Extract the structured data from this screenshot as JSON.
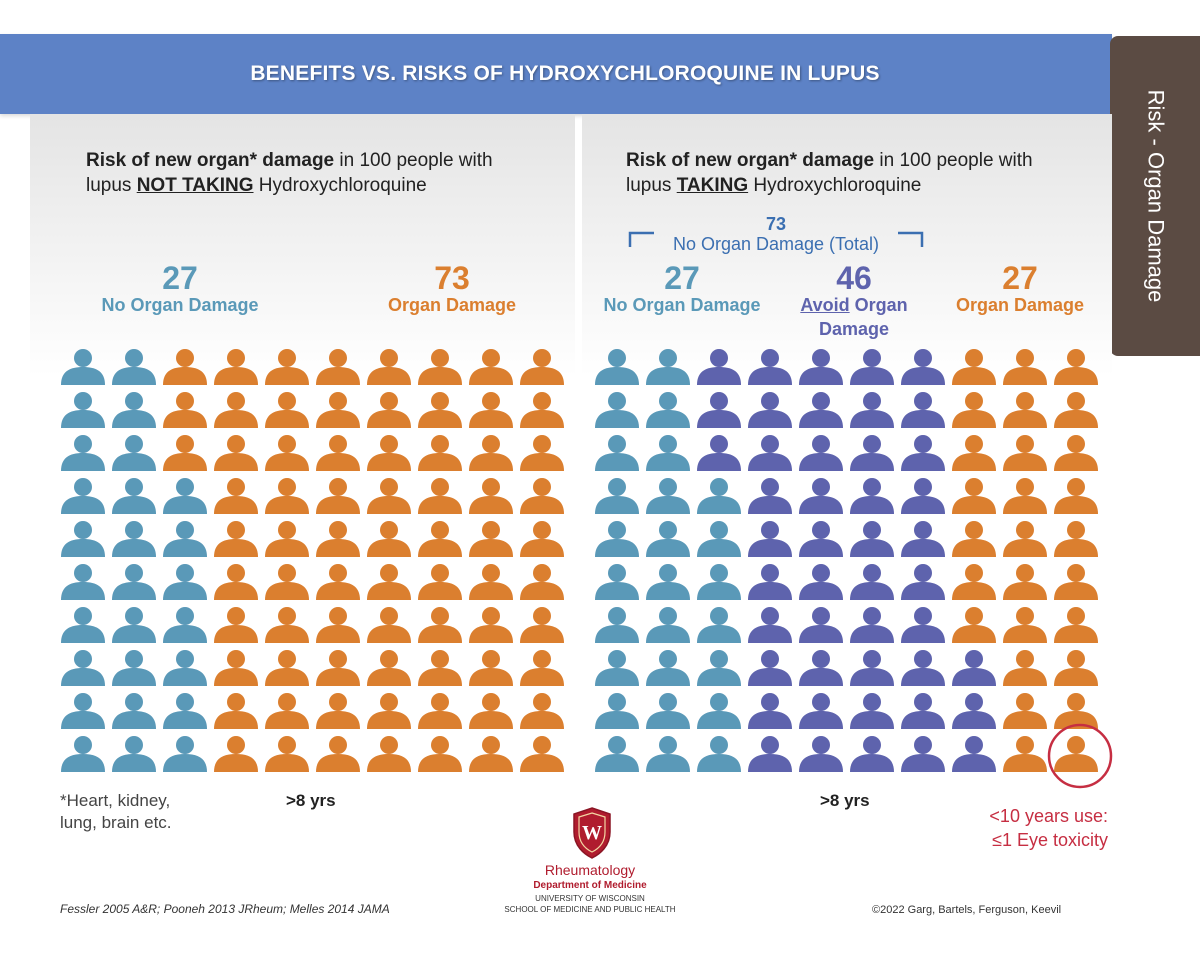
{
  "title": "BENEFITS VS. RISKS OF HYDROXYCHLOROQUINE IN LUPUS",
  "side_tab": "Risk - Organ Damage",
  "left_panel": {
    "heading_bold1": "Risk of new organ* damage",
    "heading_text1": " in 100 people with",
    "heading_text2": "lupus ",
    "heading_bold2": "NOT TAKING",
    "heading_text3": " Hydroxychloroquine",
    "groups": [
      {
        "number": "27",
        "label": "No Organ Damage"
      },
      {
        "number": "73",
        "label": "Organ Damage"
      }
    ],
    "footnote_line1": "*Heart, kidney,",
    "footnote_line2": "lung, brain etc.",
    "duration": ">8 yrs"
  },
  "right_panel": {
    "heading_bold1": "Risk of new organ* damage",
    "heading_text1": " in 100 people with",
    "heading_text2": "lupus ",
    "heading_bold2": "TAKING",
    "heading_text3": " Hydroxychloroquine",
    "total_number": "73",
    "total_label": "No Organ Damage (Total)",
    "groups": [
      {
        "number": "27",
        "label": "No Organ Damage"
      },
      {
        "number": "46",
        "label_underlined": "Avoid",
        "label_rest": " Organ",
        "label_line2": "Damage"
      },
      {
        "number": "27",
        "label": "Organ Damage"
      }
    ],
    "duration": ">8 yrs",
    "eye_note_line1": "<10 years use:",
    "eye_note_line2": "≤1 Eye toxicity"
  },
  "logo": {
    "line1": "Rheumatology",
    "line2": "Department of Medicine",
    "line3": "UNIVERSITY OF WISCONSIN",
    "line4": "SCHOOL OF MEDICINE AND PUBLIC HEALTH",
    "crest_letter": "W"
  },
  "footer": {
    "references": "Fessler 2005 A&R; Pooneh 2013 JRheum; Melles 2014 JAMA",
    "copyright": "©2022 Garg, Bartels, Ferguson, Keevil"
  },
  "colors": {
    "teal": "#5a99b8",
    "orange": "#db7f2f",
    "purple": "#5e63ad",
    "red": "#c62e42",
    "banner": "#5d82c6",
    "tab": "#5b4b43"
  },
  "chart_data": [
    {
      "type": "pictogram",
      "title": "Risk of new organ* damage in 100 people with lupus NOT TAKING Hydroxychloroquine",
      "rows": 10,
      "columns": 10,
      "total": 100,
      "series": [
        {
          "name": "No Organ Damage",
          "value": 27,
          "color": "#5a99b8"
        },
        {
          "name": "Organ Damage",
          "value": 73,
          "color": "#db7f2f"
        }
      ]
    },
    {
      "type": "pictogram",
      "title": "Risk of new organ* damage in 100 people with lupus TAKING Hydroxychloroquine",
      "rows": 10,
      "columns": 10,
      "total": 100,
      "series": [
        {
          "name": "No Organ Damage",
          "value": 27,
          "color": "#5a99b8"
        },
        {
          "name": "Avoid Organ Damage",
          "value": 46,
          "color": "#5e63ad"
        },
        {
          "name": "Organ Damage",
          "value": 27,
          "color": "#db7f2f"
        }
      ],
      "highlighted_icons": 1,
      "highlight_note": "<10 years use: ≤1 Eye toxicity"
    }
  ]
}
